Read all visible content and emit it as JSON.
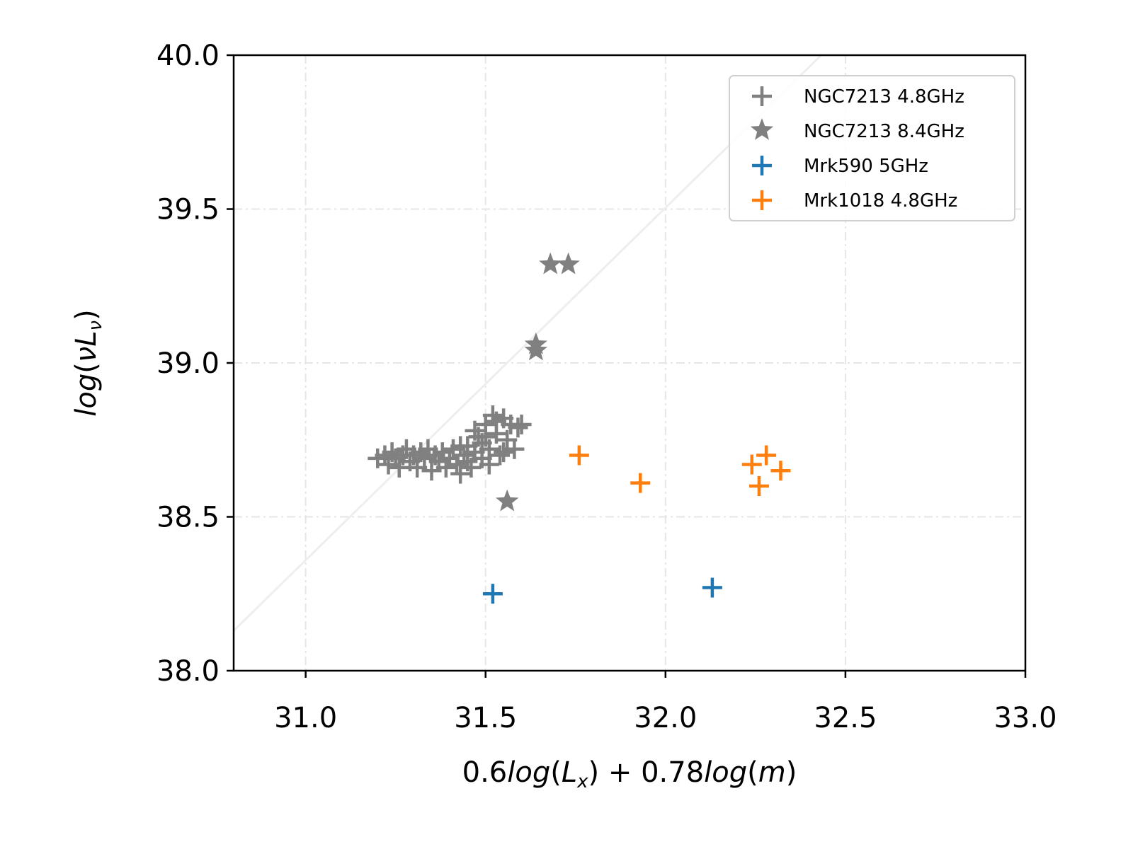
{
  "chart_data": {
    "type": "scatter",
    "xlabel": "0.6log(L_x) + 0.78log(m)",
    "ylabel": "log(νL_ν)",
    "xlim": [
      30.8,
      33.0
    ],
    "ylim": [
      38.0,
      40.0
    ],
    "xticks": [
      "31.0",
      "31.5",
      "32.0",
      "32.5",
      "33.0"
    ],
    "yticks": [
      "38.0",
      "38.5",
      "39.0",
      "39.5",
      "40.0"
    ],
    "grid": true,
    "legend_position": "top-right",
    "reference_line": {
      "color": "#eeeeee",
      "points": [
        [
          30.8,
          38.13
        ],
        [
          33.0,
          40.65
        ]
      ]
    },
    "series": [
      {
        "name": "NGC7213 4.8GHz",
        "marker": "plus",
        "color": "#808080",
        "points": [
          [
            31.2,
            38.69
          ],
          [
            31.22,
            38.7
          ],
          [
            31.23,
            38.67
          ],
          [
            31.24,
            38.71
          ],
          [
            31.25,
            38.69
          ],
          [
            31.26,
            38.66
          ],
          [
            31.27,
            38.7
          ],
          [
            31.28,
            38.72
          ],
          [
            31.29,
            38.68
          ],
          [
            31.3,
            38.7
          ],
          [
            31.31,
            38.66
          ],
          [
            31.32,
            38.71
          ],
          [
            31.33,
            38.69
          ],
          [
            31.34,
            38.72
          ],
          [
            31.35,
            38.65
          ],
          [
            31.36,
            38.7
          ],
          [
            31.37,
            38.68
          ],
          [
            31.38,
            38.71
          ],
          [
            31.39,
            38.66
          ],
          [
            31.4,
            38.69
          ],
          [
            31.41,
            38.72
          ],
          [
            31.42,
            38.67
          ],
          [
            31.43,
            38.64
          ],
          [
            31.44,
            38.7
          ],
          [
            31.45,
            38.73
          ],
          [
            31.46,
            38.66
          ],
          [
            31.47,
            38.71
          ],
          [
            31.48,
            38.76
          ],
          [
            31.49,
            38.69
          ],
          [
            31.5,
            38.8
          ],
          [
            31.51,
            38.72
          ],
          [
            31.52,
            38.83
          ],
          [
            31.53,
            38.77
          ],
          [
            31.54,
            38.7
          ],
          [
            31.55,
            38.82
          ],
          [
            31.56,
            38.75
          ],
          [
            31.57,
            38.8
          ],
          [
            31.58,
            38.72
          ],
          [
            31.59,
            38.79
          ],
          [
            31.6,
            38.8
          ],
          [
            31.47,
            38.78
          ],
          [
            31.49,
            38.74
          ],
          [
            31.51,
            38.67
          ],
          [
            31.53,
            38.81
          ],
          [
            31.45,
            38.68
          ],
          [
            31.43,
            38.73
          ],
          [
            31.55,
            38.71
          ],
          [
            31.5,
            38.76
          ]
        ]
      },
      {
        "name": "NGC7213 8.4GHz",
        "marker": "star",
        "color": "#808080",
        "points": [
          [
            31.68,
            39.32
          ],
          [
            31.73,
            39.32
          ],
          [
            31.64,
            39.06
          ],
          [
            31.64,
            39.04
          ],
          [
            31.56,
            38.55
          ]
        ]
      },
      {
        "name": "Mrk590 5GHz",
        "marker": "plus",
        "color": "#1f77b4",
        "points": [
          [
            31.52,
            38.25
          ],
          [
            32.13,
            38.27
          ]
        ]
      },
      {
        "name": "Mrk1018 4.8GHz",
        "marker": "plus",
        "color": "#ff7f0e",
        "points": [
          [
            31.76,
            38.7
          ],
          [
            31.93,
            38.61
          ],
          [
            32.24,
            38.67
          ],
          [
            32.28,
            38.7
          ],
          [
            32.32,
            38.65
          ],
          [
            32.26,
            38.6
          ]
        ]
      }
    ]
  }
}
